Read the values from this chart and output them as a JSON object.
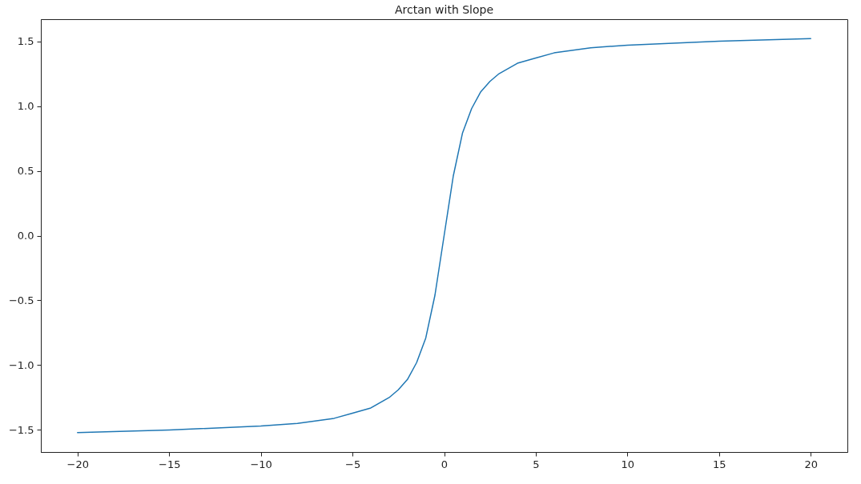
{
  "chart_data": {
    "type": "line",
    "title": "Arctan with Slope",
    "x": [
      -20,
      -15,
      -10,
      -8,
      -6,
      -5,
      -4,
      -3,
      -2.5,
      -2,
      -1.5,
      -1,
      -0.5,
      0,
      0.5,
      1,
      1.5,
      2,
      2.5,
      3,
      4,
      5,
      6,
      8,
      10,
      15,
      20
    ],
    "series": [
      {
        "color": "#1f77b4",
        "values": [
          -1.52,
          -1.5,
          -1.47,
          -1.45,
          -1.41,
          -1.37,
          -1.33,
          -1.25,
          -1.19,
          -1.11,
          -0.98,
          -0.79,
          -0.46,
          0,
          0.46,
          0.79,
          0.98,
          1.11,
          1.19,
          1.25,
          1.33,
          1.37,
          1.41,
          1.45,
          1.47,
          1.5,
          1.52
        ]
      }
    ],
    "xlim": [
      -22,
      22
    ],
    "xticks": [
      -20,
      -15,
      -10,
      -5,
      0,
      5,
      10,
      15,
      20
    ],
    "ylim": [
      -1.67,
      1.67
    ],
    "yticks": [
      -1.5,
      {
        "value": -1,
        "label": "−1.0"
      },
      -0.5,
      {
        "value": 0,
        "label": "0.0"
      },
      0.5,
      {
        "value": 1,
        "label": "1.0"
      },
      1.5
    ],
    "grid": false,
    "marker": "none",
    "line_style": "solid"
  }
}
